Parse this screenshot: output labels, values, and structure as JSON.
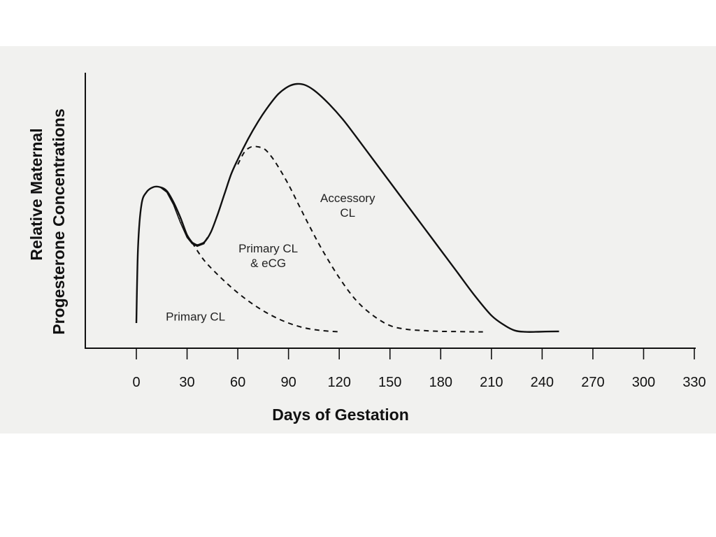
{
  "chart_data": {
    "type": "line",
    "ylabel_lines": [
      "Relative Maternal",
      "Progesterone Concentrations"
    ],
    "xlabel": "Days of Gestation",
    "xlim": [
      0,
      330
    ],
    "xticks": [
      0,
      30,
      60,
      90,
      120,
      150,
      180,
      210,
      240,
      270,
      300,
      330
    ],
    "ylim": [
      0,
      100
    ],
    "grid": false,
    "y_tick_labels": "none",
    "series": [
      {
        "name": "Primary CL",
        "style": "solid",
        "x": [
          0,
          1,
          3,
          6,
          10,
          14,
          18,
          22,
          26,
          30,
          33
        ],
        "y": [
          5,
          35,
          52,
          57,
          59,
          59,
          57.5,
          53,
          47,
          40,
          37
        ]
      },
      {
        "style": "solid",
        "x": [
          33,
          36,
          40,
          44,
          48,
          52,
          56,
          60,
          66,
          72,
          78,
          84,
          90,
          95,
          100,
          106,
          114,
          122,
          130,
          140,
          150,
          160,
          170,
          180,
          190,
          200,
          210,
          218,
          224,
          230,
          236,
          242,
          250
        ],
        "y": [
          37,
          36,
          37,
          41,
          48,
          56,
          64,
          70,
          78,
          85,
          91,
          96,
          99,
          100,
          99.5,
          97,
          92,
          86,
          79,
          70,
          61,
          52,
          43,
          34,
          25,
          16,
          8,
          4,
          2,
          1.5,
          1.5,
          1.6,
          1.7
        ]
      },
      {
        "name": "Primary CL & eCG",
        "style": "dashed",
        "x": [
          33,
          40,
          50,
          60,
          70,
          80,
          90,
          100,
          110,
          120
        ],
        "y": [
          37,
          30,
          23,
          17,
          12,
          8,
          5,
          3,
          2,
          1.5
        ]
      },
      {
        "name": "Accessory CL",
        "style": "dashed",
        "x": [
          60,
          64,
          68,
          72,
          76,
          80,
          84,
          90,
          96,
          102,
          110,
          120,
          130,
          140,
          150,
          160,
          170,
          180,
          190,
          200,
          205
        ],
        "y": [
          68,
          73,
          75,
          75,
          74,
          71,
          67,
          60,
          52,
          44,
          34,
          23,
          14,
          8,
          4,
          2.5,
          2,
          1.7,
          1.6,
          1.5,
          1.5
        ]
      }
    ],
    "shaded_region": {
      "x": [
        14,
        18,
        22,
        26,
        30,
        33,
        36,
        40,
        42
      ],
      "upper": [
        59,
        57.5,
        53,
        47,
        40,
        37,
        36,
        37,
        39
      ],
      "lower": [
        59,
        57,
        52,
        45,
        39,
        36.5,
        35.5,
        36.5,
        39
      ],
      "pattern": "hatched"
    },
    "annotations": [
      {
        "text_lines": [
          "Primary CL"
        ],
        "x": 35,
        "y": 6
      },
      {
        "text_lines": [
          "Primary CL",
          "& eCG"
        ],
        "x": 78,
        "y": 33
      },
      {
        "text_lines": [
          "Accessory",
          "CL"
        ],
        "x": 125,
        "y": 53
      }
    ]
  }
}
